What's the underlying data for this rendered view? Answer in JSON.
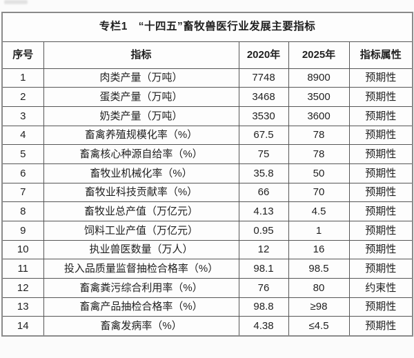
{
  "table": {
    "title": "专栏1　“十四五”畜牧兽医行业发展主要指标",
    "columns": [
      "序号",
      "指标",
      "2020年",
      "2025年",
      "指标属性"
    ],
    "rows": [
      [
        "1",
        "肉类产量（万吨）",
        "7748",
        "8900",
        "预期性"
      ],
      [
        "2",
        "蛋类产量（万吨）",
        "3468",
        "3500",
        "预期性"
      ],
      [
        "3",
        "奶类产量（万吨）",
        "3530",
        "3600",
        "预期性"
      ],
      [
        "4",
        "畜禽养殖规模化率（%）",
        "67.5",
        "78",
        "预期性"
      ],
      [
        "5",
        "畜禽核心种源自给率（%）",
        "75",
        "78",
        "预期性"
      ],
      [
        "6",
        "畜牧业机械化率（%）",
        "35.8",
        "50",
        "预期性"
      ],
      [
        "7",
        "畜牧业科技贡献率（%）",
        "66",
        "70",
        "预期性"
      ],
      [
        "8",
        "畜牧业总产值（万亿元）",
        "4.13",
        "4.5",
        "预期性"
      ],
      [
        "9",
        "饲料工业产值（万亿元）",
        "0.95",
        "1",
        "预期性"
      ],
      [
        "10",
        "执业兽医数量（万人）",
        "12",
        "16",
        "预期性"
      ],
      [
        "11",
        "投入品质量监督抽检合格率（%）",
        "98.1",
        "98.5",
        "预期性"
      ],
      [
        "12",
        "畜禽粪污综合利用率（%）",
        "76",
        "80",
        "约束性"
      ],
      [
        "13",
        "畜禽产品抽检合格率（%）",
        "98.8",
        "≥98",
        "预期性"
      ],
      [
        "14",
        "畜禽发病率（%）",
        "4.38",
        "≤4.5",
        "预期性"
      ]
    ]
  },
  "colors": {
    "page_background": "#fbfbfb",
    "grid_line": "#555555",
    "outer_border": "#8a8a8a",
    "text": "#1f1f1f"
  }
}
